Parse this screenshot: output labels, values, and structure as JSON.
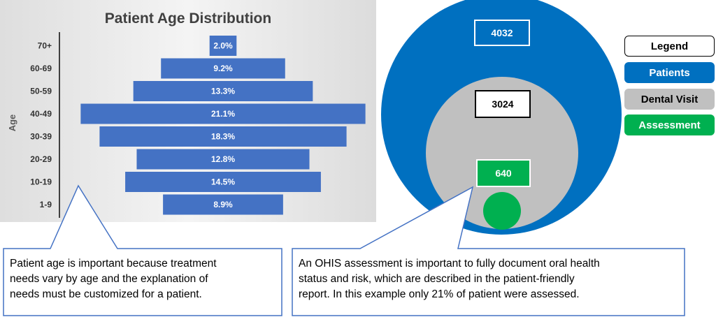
{
  "chart_data": {
    "type": "bar",
    "orientation": "horizontal-centered",
    "title": "Patient Age Distribution",
    "ylabel": "Age",
    "categories": [
      "70+",
      "60-69",
      "50-59",
      "40-49",
      "30-39",
      "20-29",
      "10-19",
      "1-9"
    ],
    "values": [
      2.0,
      9.2,
      13.3,
      21.1,
      18.3,
      12.8,
      14.5,
      8.9
    ],
    "value_labels": [
      "2.0%",
      "9.2%",
      "13.3%",
      "21.1%",
      "18.3%",
      "12.8%",
      "14.5%",
      "8.9%"
    ],
    "unit": "%",
    "bar_color": "#4472c4"
  },
  "venn": {
    "patients": {
      "count": "4032",
      "color": "#0070c0"
    },
    "dental_visit": {
      "count": "3024",
      "color": "#c0c0c0"
    },
    "assessment": {
      "count": "640",
      "color": "#00b050"
    }
  },
  "legend": {
    "title": "Legend",
    "items": [
      {
        "label": "Patients",
        "color": "#0070c0"
      },
      {
        "label": "Dental Visit",
        "color": "#c0c0c0"
      },
      {
        "label": "Assessment",
        "color": "#00b050"
      }
    ]
  },
  "callouts": {
    "left": {
      "lines": [
        "Patient age is important because treatment",
        "needs vary by age and the explanation of",
        "needs must be customized for a patient."
      ]
    },
    "right": {
      "lines": [
        "An OHIS assessment is important to fully document oral health",
        "status and risk, which are described in the patient-friendly",
        "report.  In this example only 21% of patient were assessed."
      ]
    },
    "border_color": "#4472c4"
  }
}
